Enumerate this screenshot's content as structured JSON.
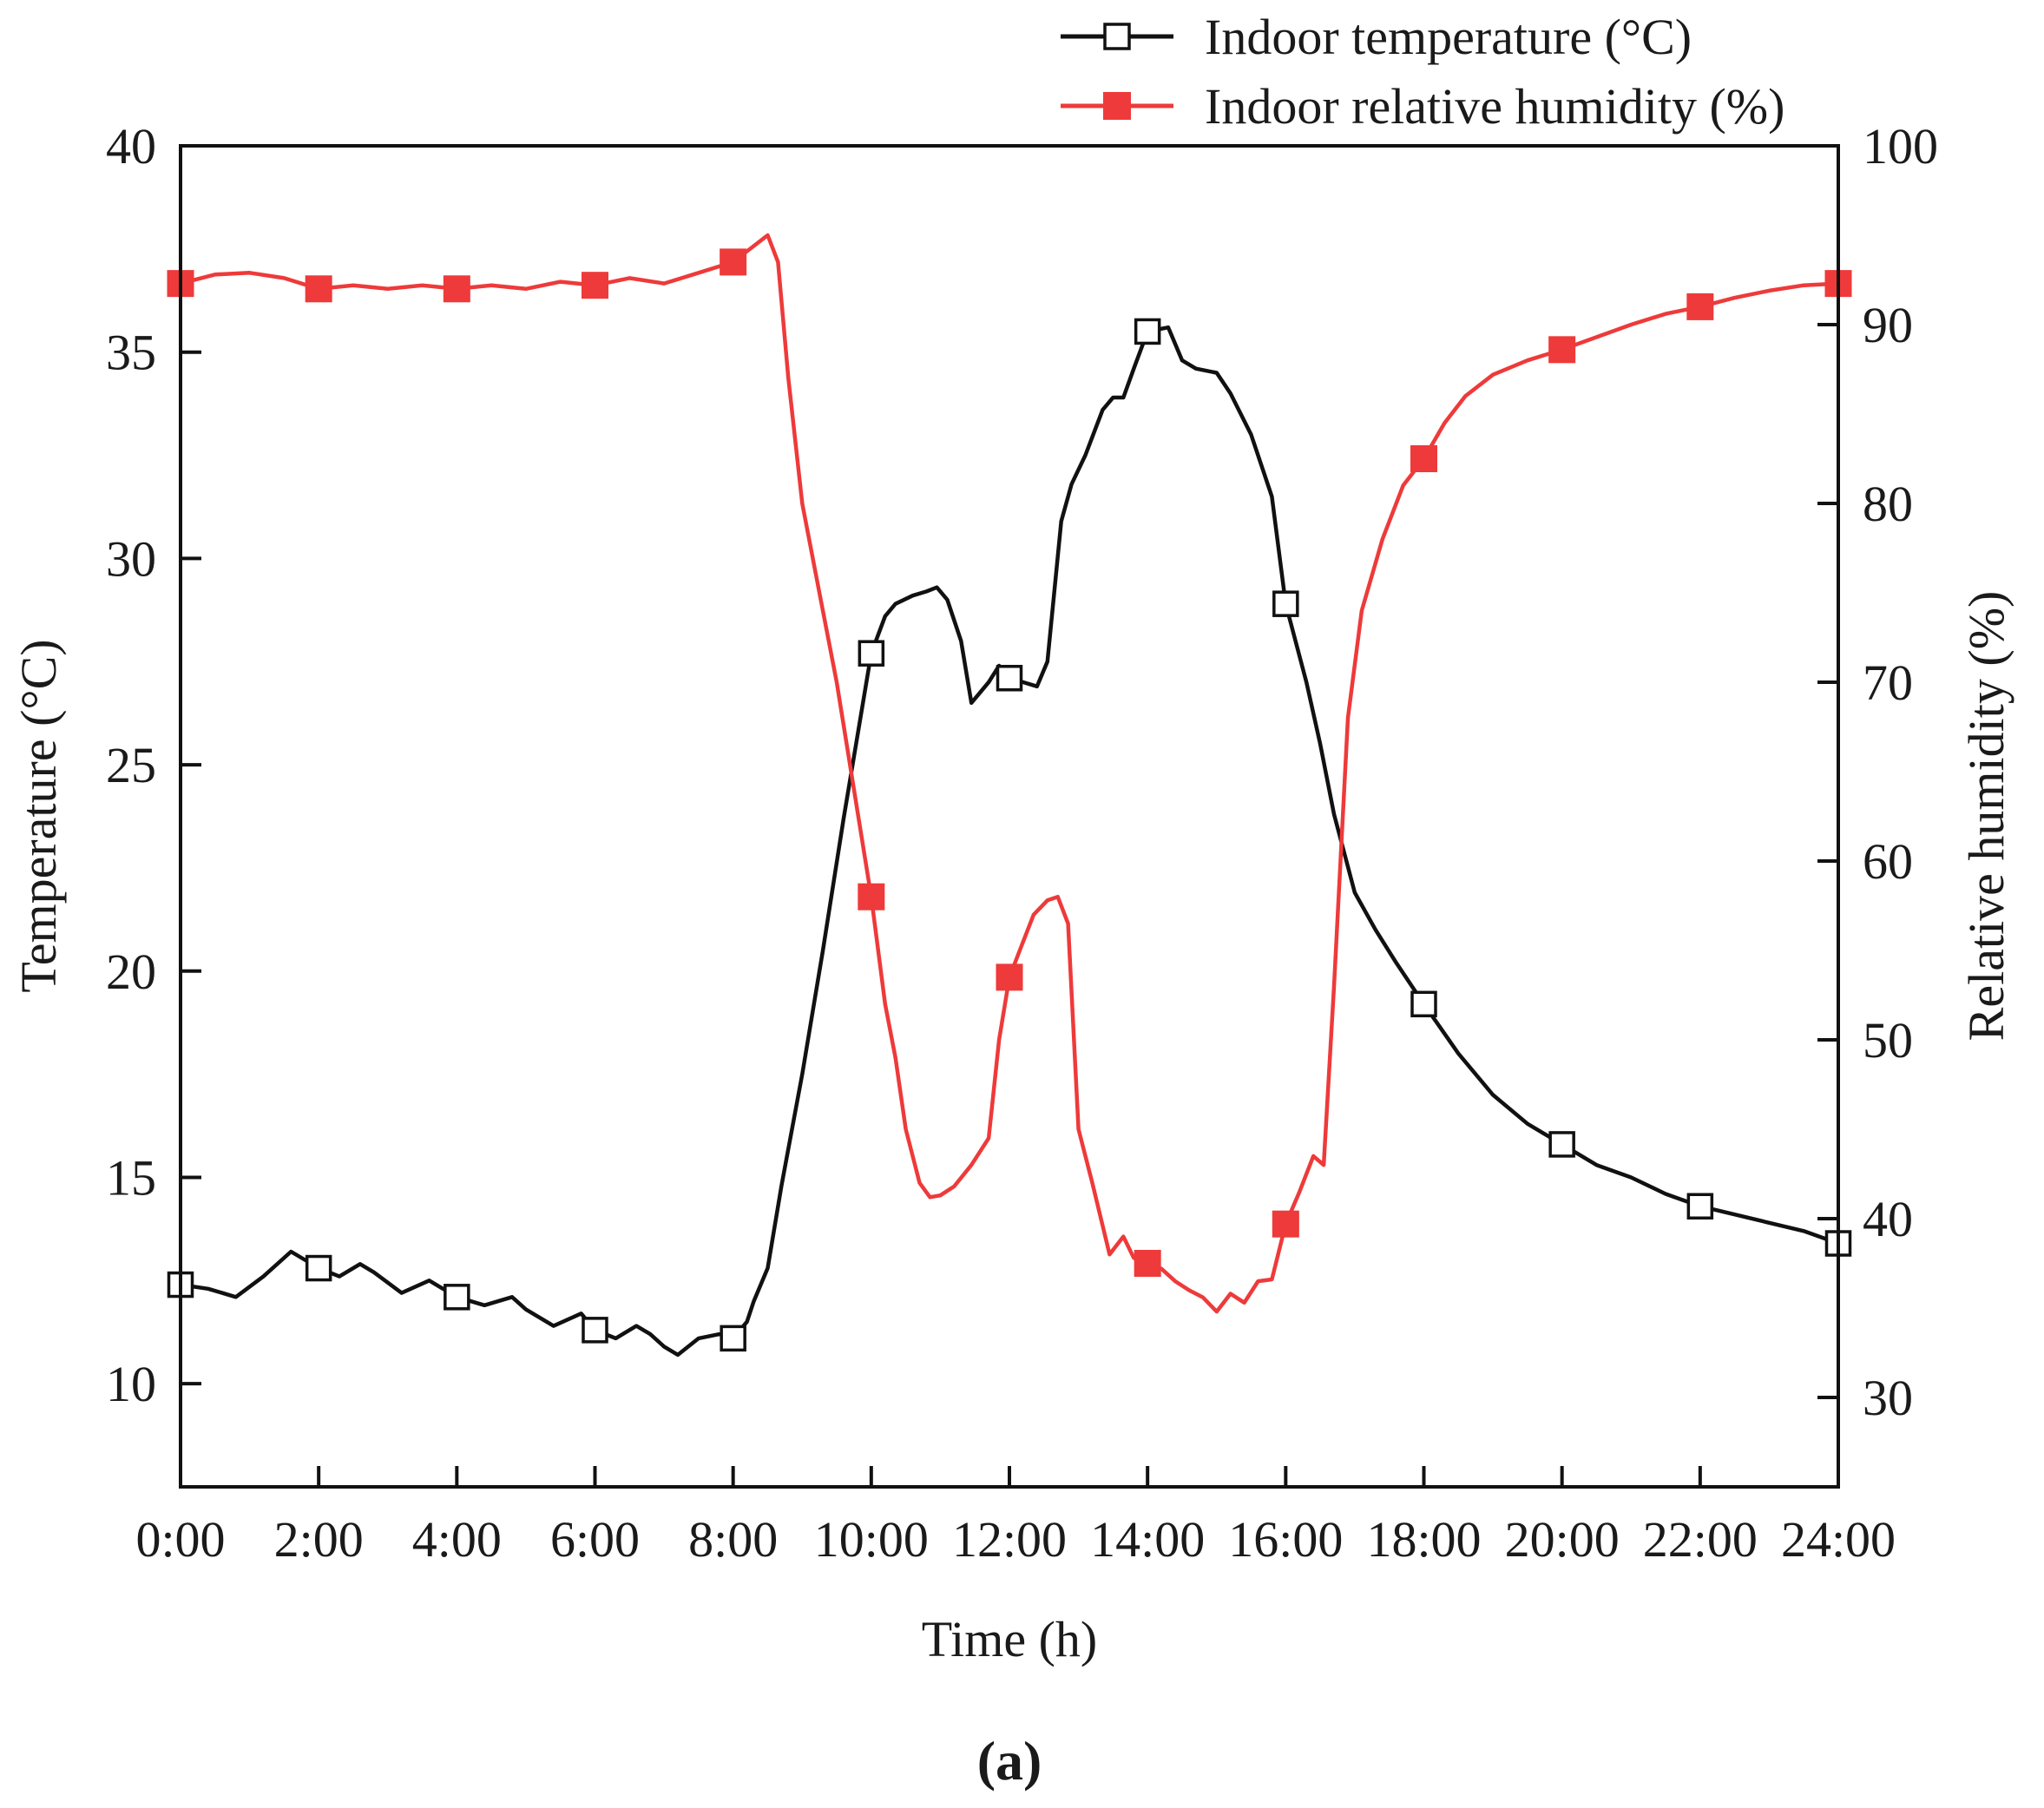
{
  "chart_data": {
    "type": "line",
    "xlabel": "Time (h)",
    "ylabel": "Temperature (°C)",
    "y2label": "Relative humidity (%)",
    "xlim": [
      0,
      24
    ],
    "ylim": [
      7.5,
      40
    ],
    "y2lim": [
      25,
      100
    ],
    "x_ticks": [
      0,
      2,
      4,
      6,
      8,
      10,
      12,
      14,
      16,
      18,
      20,
      22,
      24
    ],
    "x_tick_labels": [
      "0:00",
      "2:00",
      "4:00",
      "6:00",
      "8:00",
      "10:00",
      "12:00",
      "14:00",
      "16:00",
      "18:00",
      "20:00",
      "22:00",
      "24:00"
    ],
    "y_ticks": [
      10,
      15,
      20,
      25,
      30,
      35,
      40
    ],
    "y2_ticks": [
      30,
      40,
      50,
      60,
      70,
      80,
      90,
      100
    ],
    "panel_label": "(a)",
    "legend_position": "top-right",
    "marker_x": [
      0,
      2,
      4,
      6,
      8,
      10,
      12,
      14,
      16,
      18,
      20,
      22,
      24
    ],
    "series": [
      {
        "name": "Indoor temperature (°C)",
        "axis": "left",
        "color": "#111111",
        "marker": "open-square",
        "x": [
          0,
          0.4,
          0.8,
          1.2,
          1.6,
          1.8,
          2.0,
          2.3,
          2.6,
          2.8,
          3.2,
          3.6,
          4.0,
          4.4,
          4.8,
          5.0,
          5.4,
          5.8,
          6.0,
          6.3,
          6.6,
          6.8,
          7.0,
          7.2,
          7.5,
          7.8,
          8.0,
          8.2,
          8.3,
          8.5,
          8.7,
          9.0,
          9.3,
          9.6,
          10.0,
          10.2,
          10.35,
          10.6,
          10.8,
          10.95,
          11.1,
          11.3,
          11.45,
          11.7,
          11.85,
          12.0,
          12.2,
          12.4,
          12.55,
          12.75,
          12.9,
          13.1,
          13.35,
          13.5,
          13.65,
          13.8,
          14.0,
          14.3,
          14.5,
          14.7,
          15.0,
          15.2,
          15.5,
          15.8,
          16.0,
          16.3,
          16.5,
          16.7,
          17.0,
          17.3,
          17.6,
          18.0,
          18.5,
          19.0,
          19.5,
          20.0,
          20.5,
          21.0,
          21.5,
          22.0,
          22.5,
          23.0,
          23.5,
          24.0
        ],
        "values": [
          12.4,
          12.3,
          12.1,
          12.6,
          13.2,
          13.0,
          12.8,
          12.6,
          12.9,
          12.7,
          12.2,
          12.5,
          12.1,
          11.9,
          12.1,
          11.8,
          11.4,
          11.7,
          11.3,
          11.1,
          11.4,
          11.2,
          10.9,
          10.7,
          11.1,
          11.2,
          11.1,
          11.5,
          12.0,
          12.8,
          14.8,
          17.5,
          20.5,
          23.7,
          27.7,
          28.6,
          28.9,
          29.1,
          29.2,
          29.3,
          29.0,
          28.0,
          26.5,
          27.0,
          27.4,
          27.1,
          27.0,
          26.9,
          27.5,
          30.9,
          31.8,
          32.5,
          33.6,
          33.9,
          33.9,
          34.6,
          35.5,
          35.6,
          34.8,
          34.6,
          34.5,
          34.0,
          33.0,
          31.5,
          28.9,
          27.0,
          25.5,
          23.8,
          21.9,
          21.0,
          20.2,
          19.2,
          18.0,
          17.0,
          16.3,
          15.8,
          15.3,
          15.0,
          14.6,
          14.3,
          14.1,
          13.9,
          13.7,
          13.4
        ]
      },
      {
        "name": "Indoor relative humidity (%)",
        "axis": "right",
        "color": "#ee3a3a",
        "marker": "filled-square",
        "x": [
          0,
          0.5,
          1.0,
          1.5,
          2.0,
          2.5,
          3.0,
          3.5,
          4.0,
          4.5,
          5.0,
          5.5,
          6.0,
          6.5,
          7.0,
          7.5,
          8.0,
          8.3,
          8.5,
          8.65,
          8.8,
          9.0,
          9.25,
          9.5,
          9.75,
          10.0,
          10.2,
          10.35,
          10.5,
          10.7,
          10.85,
          11.0,
          11.2,
          11.45,
          11.7,
          11.85,
          12.0,
          12.15,
          12.35,
          12.55,
          12.7,
          12.85,
          13.0,
          13.2,
          13.45,
          13.65,
          13.8,
          14.0,
          14.2,
          14.4,
          14.6,
          14.8,
          15.0,
          15.2,
          15.4,
          15.6,
          15.8,
          16.0,
          16.2,
          16.4,
          16.55,
          16.7,
          16.9,
          17.1,
          17.4,
          17.7,
          18.0,
          18.3,
          18.6,
          19.0,
          19.5,
          20.0,
          20.5,
          21.0,
          21.5,
          22.0,
          22.5,
          23.0,
          23.5,
          24.0
        ],
        "values": [
          92.3,
          92.8,
          92.9,
          92.6,
          92.0,
          92.2,
          92.0,
          92.2,
          92.0,
          92.2,
          92.0,
          92.4,
          92.2,
          92.6,
          92.3,
          92.9,
          93.5,
          94.4,
          95.0,
          93.5,
          87.0,
          80.0,
          75.0,
          70.0,
          64.0,
          58.0,
          52.0,
          49.0,
          45.0,
          42.0,
          41.2,
          41.3,
          41.8,
          43.0,
          44.5,
          50.0,
          53.5,
          55.0,
          57.0,
          57.8,
          58.0,
          56.5,
          45.0,
          42.0,
          38.0,
          39.0,
          37.8,
          37.5,
          37.2,
          36.5,
          36.0,
          35.6,
          34.8,
          35.8,
          35.3,
          36.5,
          36.6,
          39.7,
          41.5,
          43.5,
          43.0,
          53.0,
          68.0,
          74.0,
          78.0,
          81.0,
          82.5,
          84.5,
          86.0,
          87.2,
          88.0,
          88.6,
          89.3,
          90.0,
          90.6,
          91.0,
          91.5,
          91.9,
          92.2,
          92.3
        ]
      }
    ]
  }
}
